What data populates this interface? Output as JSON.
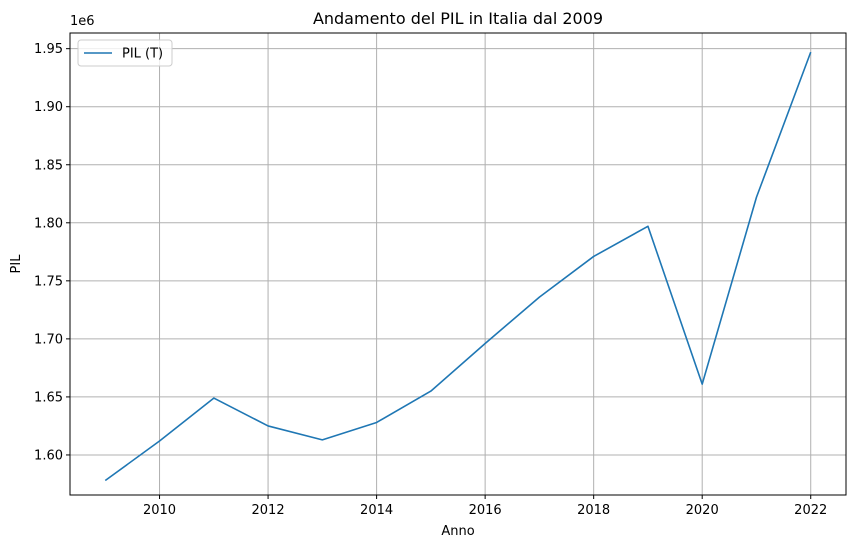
{
  "chart_data": {
    "type": "line",
    "title": "Andamento del PIL in Italia dal 2009",
    "xlabel": "Anno",
    "ylabel": "PIL",
    "y_offset_text": "1e6",
    "xlim": [
      2008.35,
      2022.65
    ],
    "ylim": [
      1.5655,
      1.9635
    ],
    "x_ticks": [
      2010,
      2012,
      2014,
      2016,
      2018,
      2020,
      2022
    ],
    "x_tick_labels": [
      "2010",
      "2012",
      "2014",
      "2016",
      "2018",
      "2020",
      "2022"
    ],
    "y_ticks": [
      1.6,
      1.65,
      1.7,
      1.75,
      1.8,
      1.85,
      1.9,
      1.95
    ],
    "y_tick_labels": [
      "1.60",
      "1.65",
      "1.70",
      "1.75",
      "1.80",
      "1.85",
      "1.90",
      "1.95"
    ],
    "grid": true,
    "legend_position": "top-left",
    "colors": {
      "line": "#1f77b4",
      "grid": "#b0b0b0",
      "axes": "#000000"
    },
    "series": [
      {
        "name": "PIL (T)",
        "x": [
          2009,
          2010,
          2011,
          2012,
          2013,
          2014,
          2015,
          2016,
          2017,
          2018,
          2019,
          2020,
          2021,
          2022
        ],
        "y": [
          1.578,
          1.612,
          1.649,
          1.625,
          1.613,
          1.628,
          1.655,
          1.696,
          1.736,
          1.771,
          1.797,
          1.661,
          1.822,
          1.947
        ]
      }
    ]
  }
}
